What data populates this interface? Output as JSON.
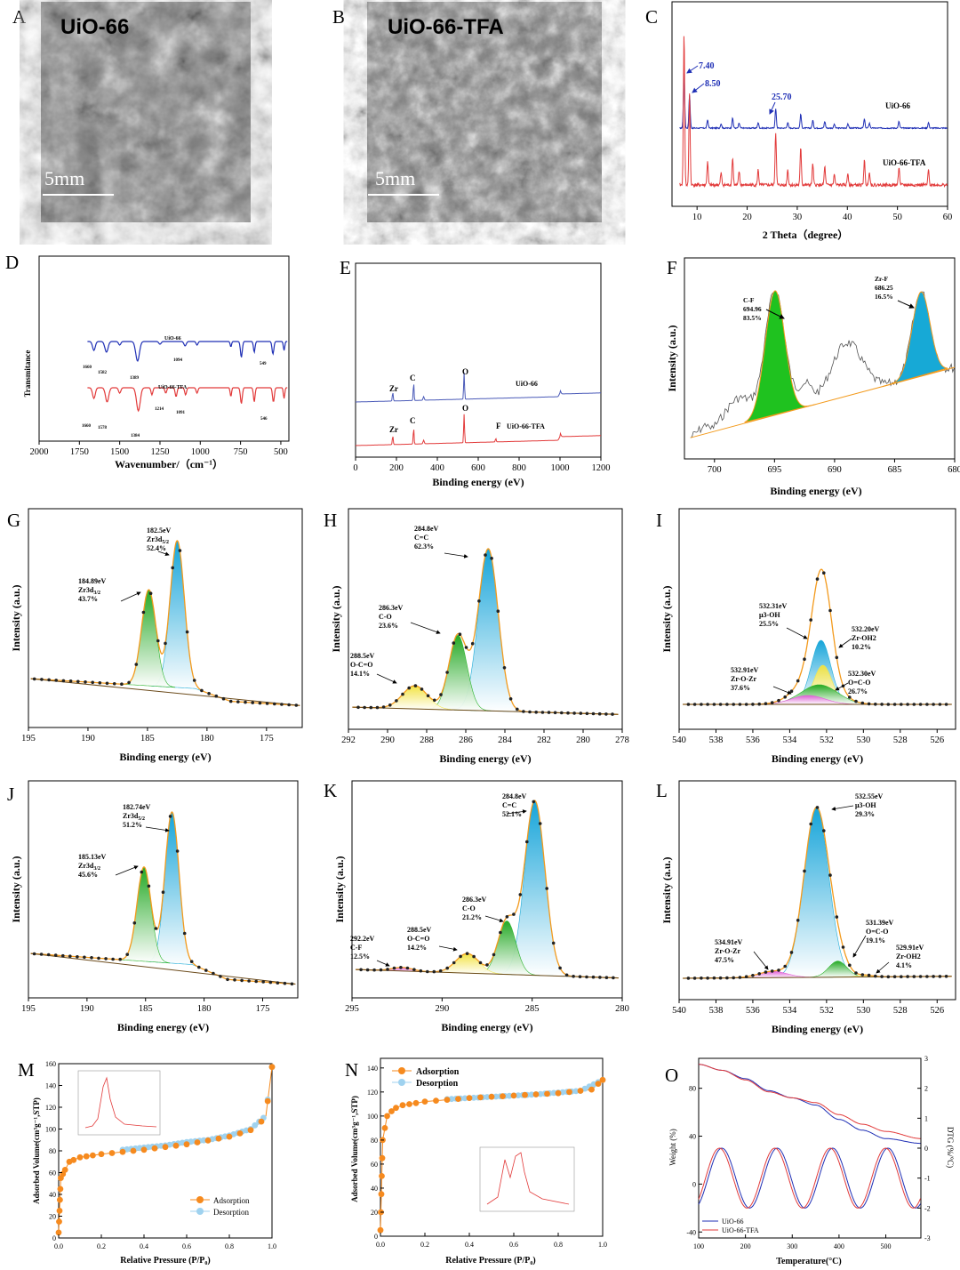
{
  "panels": {
    "A": {
      "letter": "A",
      "title": "UiO-66",
      "scale": "5mm"
    },
    "B": {
      "letter": "B",
      "title": "UiO-66-TFA",
      "scale": "5mm"
    },
    "C": {
      "letter": "C",
      "xlabel": "2 Theta（degree）",
      "xticks": [
        "10",
        "20",
        "30",
        "40",
        "50",
        "60"
      ],
      "peaks": [
        "7.40",
        "8.50",
        "25.70"
      ],
      "labels": [
        "UiO-66",
        "UiO-66-TFA"
      ]
    },
    "D": {
      "letter": "D",
      "xlabel": "Wavenumber/（cm⁻¹）",
      "ylabel": "Transmitance",
      "xticks": [
        "2000",
        "1750",
        "1500",
        "1250",
        "1000",
        "750",
        "500"
      ],
      "labels": [
        "UiO-66",
        "UiO-66-TFA"
      ],
      "top_peaks": [
        "1660",
        "1582",
        "1389",
        "1094",
        "549"
      ],
      "bottom_peaks": [
        "1660",
        "1578",
        "1384",
        "1214",
        "1091",
        "546"
      ]
    },
    "E": {
      "letter": "E",
      "xlabel": "Binding energy (eV)",
      "xticks": [
        "0",
        "200",
        "400",
        "600",
        "800",
        "1000",
        "1200"
      ],
      "labels": [
        "UiO-66",
        "UiO-66-TFA"
      ],
      "elements": [
        "Zr",
        "C",
        "O",
        "Zr",
        "C",
        "O",
        "F"
      ]
    },
    "F": {
      "letter": "F",
      "xlabel": "Binding energy (eV)",
      "ylabel": "Intensity (a.u.)",
      "xticks": [
        "700",
        "695",
        "690",
        "685",
        "680"
      ],
      "peaks": [
        {
          "name": "C-F",
          "ev": "694.96",
          "pct": "83.5%"
        },
        {
          "name": "Zr-F",
          "ev": "686.25",
          "pct": "16.5%"
        }
      ]
    },
    "G": {
      "letter": "G",
      "xlabel": "Binding energy (eV)",
      "ylabel": "Intensity (a.u.)",
      "xticks": [
        "195",
        "190",
        "185",
        "180",
        "175"
      ],
      "peaks": [
        {
          "ev": "182.5eV",
          "name": "Zr3d",
          "sub": "5/2",
          "pct": "52.4%"
        },
        {
          "ev": "184.89eV",
          "name": "Zr3d",
          "sub": "3/2",
          "pct": "43.7%"
        }
      ]
    },
    "H": {
      "letter": "H",
      "xlabel": "Binding energy (eV)",
      "ylabel": "Intensity (a.u.)",
      "xticks": [
        "292",
        "290",
        "288",
        "286",
        "284",
        "282",
        "280",
        "278"
      ],
      "peaks": [
        {
          "ev": "284.8eV",
          "name": "C=C",
          "pct": "62.3%"
        },
        {
          "ev": "286.3eV",
          "name": "C-O",
          "pct": "23.6%"
        },
        {
          "ev": "288.5eV",
          "name": "O-C=O",
          "pct": "14.1%"
        }
      ]
    },
    "I": {
      "letter": "I",
      "xlabel": "Binding energy (eV)",
      "ylabel": "Intensity (a.u.)",
      "xticks": [
        "540",
        "538",
        "536",
        "534",
        "532",
        "530",
        "528",
        "526"
      ],
      "peaks": [
        {
          "ev": "532.31eV",
          "name": "μ3-OH",
          "pct": "25.5%"
        },
        {
          "ev": "532.20eV",
          "name": "Zr-OH2",
          "pct": "10.2%"
        },
        {
          "ev": "532.91eV",
          "name": "Zr-O-Zr",
          "pct": "37.6%"
        },
        {
          "ev": "532.30eV",
          "name": "O=C-O",
          "pct": "26.7%"
        }
      ]
    },
    "J": {
      "letter": "J",
      "xlabel": "Binding energy (eV)",
      "ylabel": "Intensity (a.u.)",
      "xticks": [
        "195",
        "190",
        "185",
        "180",
        "175"
      ],
      "peaks": [
        {
          "ev": "182.74eV",
          "name": "Zr3d",
          "sub": "5/2",
          "pct": "51.2%"
        },
        {
          "ev": "185.13eV",
          "name": "Zr3d",
          "sub": "3/2",
          "pct": "45.6%"
        }
      ]
    },
    "K": {
      "letter": "K",
      "xlabel": "Binding energy (eV)",
      "ylabel": "Intensity (a.u.)",
      "xticks": [
        "295",
        "290",
        "285",
        "280"
      ],
      "peaks": [
        {
          "ev": "284.8eV",
          "name": "C=C",
          "pct": "52.1%"
        },
        {
          "ev": "286.3eV",
          "name": "C-O",
          "pct": "21.2%"
        },
        {
          "ev": "288.5eV",
          "name": "O-C=O",
          "pct": "14.2%"
        },
        {
          "ev": "292.2eV",
          "name": "C-F",
          "pct": "12.5%"
        }
      ]
    },
    "L": {
      "letter": "L",
      "xlabel": "Binding energy (eV)",
      "ylabel": "Intensity (a.u.)",
      "xticks": [
        "540",
        "538",
        "536",
        "534",
        "532",
        "530",
        "528",
        "526"
      ],
      "peaks": [
        {
          "ev": "532.55eV",
          "name": "μ3-OH",
          "pct": "29.3%"
        },
        {
          "ev": "531.39eV",
          "name": "O=C-O",
          "pct": "19.1%"
        },
        {
          "ev": "534.91eV",
          "name": "Zr-O-Zr",
          "pct": "47.5%"
        },
        {
          "ev": "529.91eV",
          "name": "Zr-OH2",
          "pct": "4.1%"
        }
      ]
    },
    "M": {
      "letter": "M",
      "xlabel": "Relative Pressure (P/P₀)",
      "ylabel": "Adsorbed Volume(cm³g⁻¹,STP)",
      "xticks": [
        "0.0",
        "0.2",
        "0.4",
        "0.6",
        "0.8",
        "1.0"
      ],
      "yticks": [
        "0",
        "20",
        "40",
        "60",
        "80",
        "100",
        "120",
        "140",
        "160"
      ],
      "legend": [
        "Adsorption",
        "Desorption"
      ]
    },
    "N": {
      "letter": "N",
      "xlabel": "Relative Pressure (P/P₀)",
      "ylabel": "Adsorbed Volume(cm³g⁻¹,STP)",
      "xticks": [
        "0.0",
        "0.2",
        "0.4",
        "0.6",
        "0.8",
        "1.0"
      ],
      "yticks": [
        "0",
        "20",
        "40",
        "60",
        "80",
        "100",
        "120",
        "140"
      ],
      "legend": [
        "Adsorption",
        "Desorption"
      ]
    },
    "O": {
      "letter": "O",
      "xlabel": "Temperature(°C)",
      "ylabel": "Weight (%)",
      "y2label": "DTG (%/°C)",
      "xticks": [
        "100",
        "200",
        "300",
        "400",
        "500"
      ],
      "yticks": [
        "-40",
        "0",
        "40",
        "80"
      ],
      "y2ticks": [
        "-3",
        "-2",
        "-1",
        "0",
        "1",
        "2",
        "3"
      ],
      "legend": [
        "UiO-66",
        "UiO-66-TFA"
      ]
    }
  },
  "colors": {
    "blue": "#1f2fb5",
    "red": "#e23a3a",
    "green": "#22b022",
    "cyan": "#17a9d6",
    "orange": "#f39a1c",
    "yellow": "#f2e84a",
    "magenta": "#e05ad6",
    "lightblue": "#9fd2ef"
  },
  "chart_data": [
    {
      "panel": "C",
      "type": "line",
      "xlabel": "2 Theta（degree）",
      "xlim": [
        5,
        60
      ],
      "series": [
        {
          "name": "UiO-66",
          "peaks_x": [
            7.4,
            8.5,
            25.7
          ]
        },
        {
          "name": "UiO-66-TFA",
          "peaks_x": [
            7.4,
            8.5,
            25.7
          ]
        }
      ]
    },
    {
      "panel": "M",
      "type": "scatter",
      "xlabel": "Relative Pressure (P/P₀)",
      "xlim": [
        0,
        1
      ],
      "ylim": [
        0,
        160
      ],
      "series": [
        {
          "name": "Adsorption",
          "x": [
            0.0,
            0.01,
            0.05,
            0.1,
            0.2,
            0.4,
            0.6,
            0.8,
            0.9,
            0.97,
            1.0
          ],
          "y": [
            5,
            55,
            70,
            74,
            77,
            81,
            86,
            93,
            99,
            110,
            157
          ]
        },
        {
          "name": "Desorption",
          "x": [
            0.3,
            0.4,
            0.5,
            0.6,
            0.7,
            0.8,
            0.9,
            0.97,
            1.0
          ],
          "y": [
            81,
            83,
            85,
            88,
            90,
            94,
            100,
            112,
            157
          ]
        }
      ]
    },
    {
      "panel": "N",
      "type": "scatter",
      "xlabel": "Relative Pressure (P/P₀)",
      "xlim": [
        0,
        1
      ],
      "ylim": [
        0,
        140
      ],
      "series": [
        {
          "name": "Adsorption",
          "x": [
            0.0,
            0.01,
            0.03,
            0.06,
            0.1,
            0.2,
            0.4,
            0.6,
            0.8,
            0.95,
            1.0
          ],
          "y": [
            5,
            80,
            100,
            106,
            109,
            112,
            115,
            117,
            119,
            122,
            130
          ]
        },
        {
          "name": "Desorption",
          "x": [
            0.3,
            0.5,
            0.7,
            0.9,
            1.0
          ],
          "y": [
            114,
            116,
            118,
            121,
            130
          ]
        }
      ]
    },
    {
      "panel": "O",
      "type": "line",
      "xlabel": "Temperature(°C)",
      "xlim": [
        100,
        575
      ],
      "ylim": [
        -45,
        105
      ],
      "series": [
        {
          "name": "UiO-66",
          "x": [
            100,
            150,
            200,
            250,
            300,
            350,
            400,
            450,
            500,
            575
          ],
          "y": [
            100,
            95,
            88,
            78,
            72,
            66,
            54,
            45,
            38,
            34
          ]
        },
        {
          "name": "UiO-66-TFA",
          "x": [
            100,
            150,
            200,
            250,
            300,
            350,
            400,
            450,
            500,
            575
          ],
          "y": [
            100,
            95,
            87,
            77,
            72,
            68,
            58,
            50,
            44,
            38
          ]
        }
      ]
    }
  ]
}
